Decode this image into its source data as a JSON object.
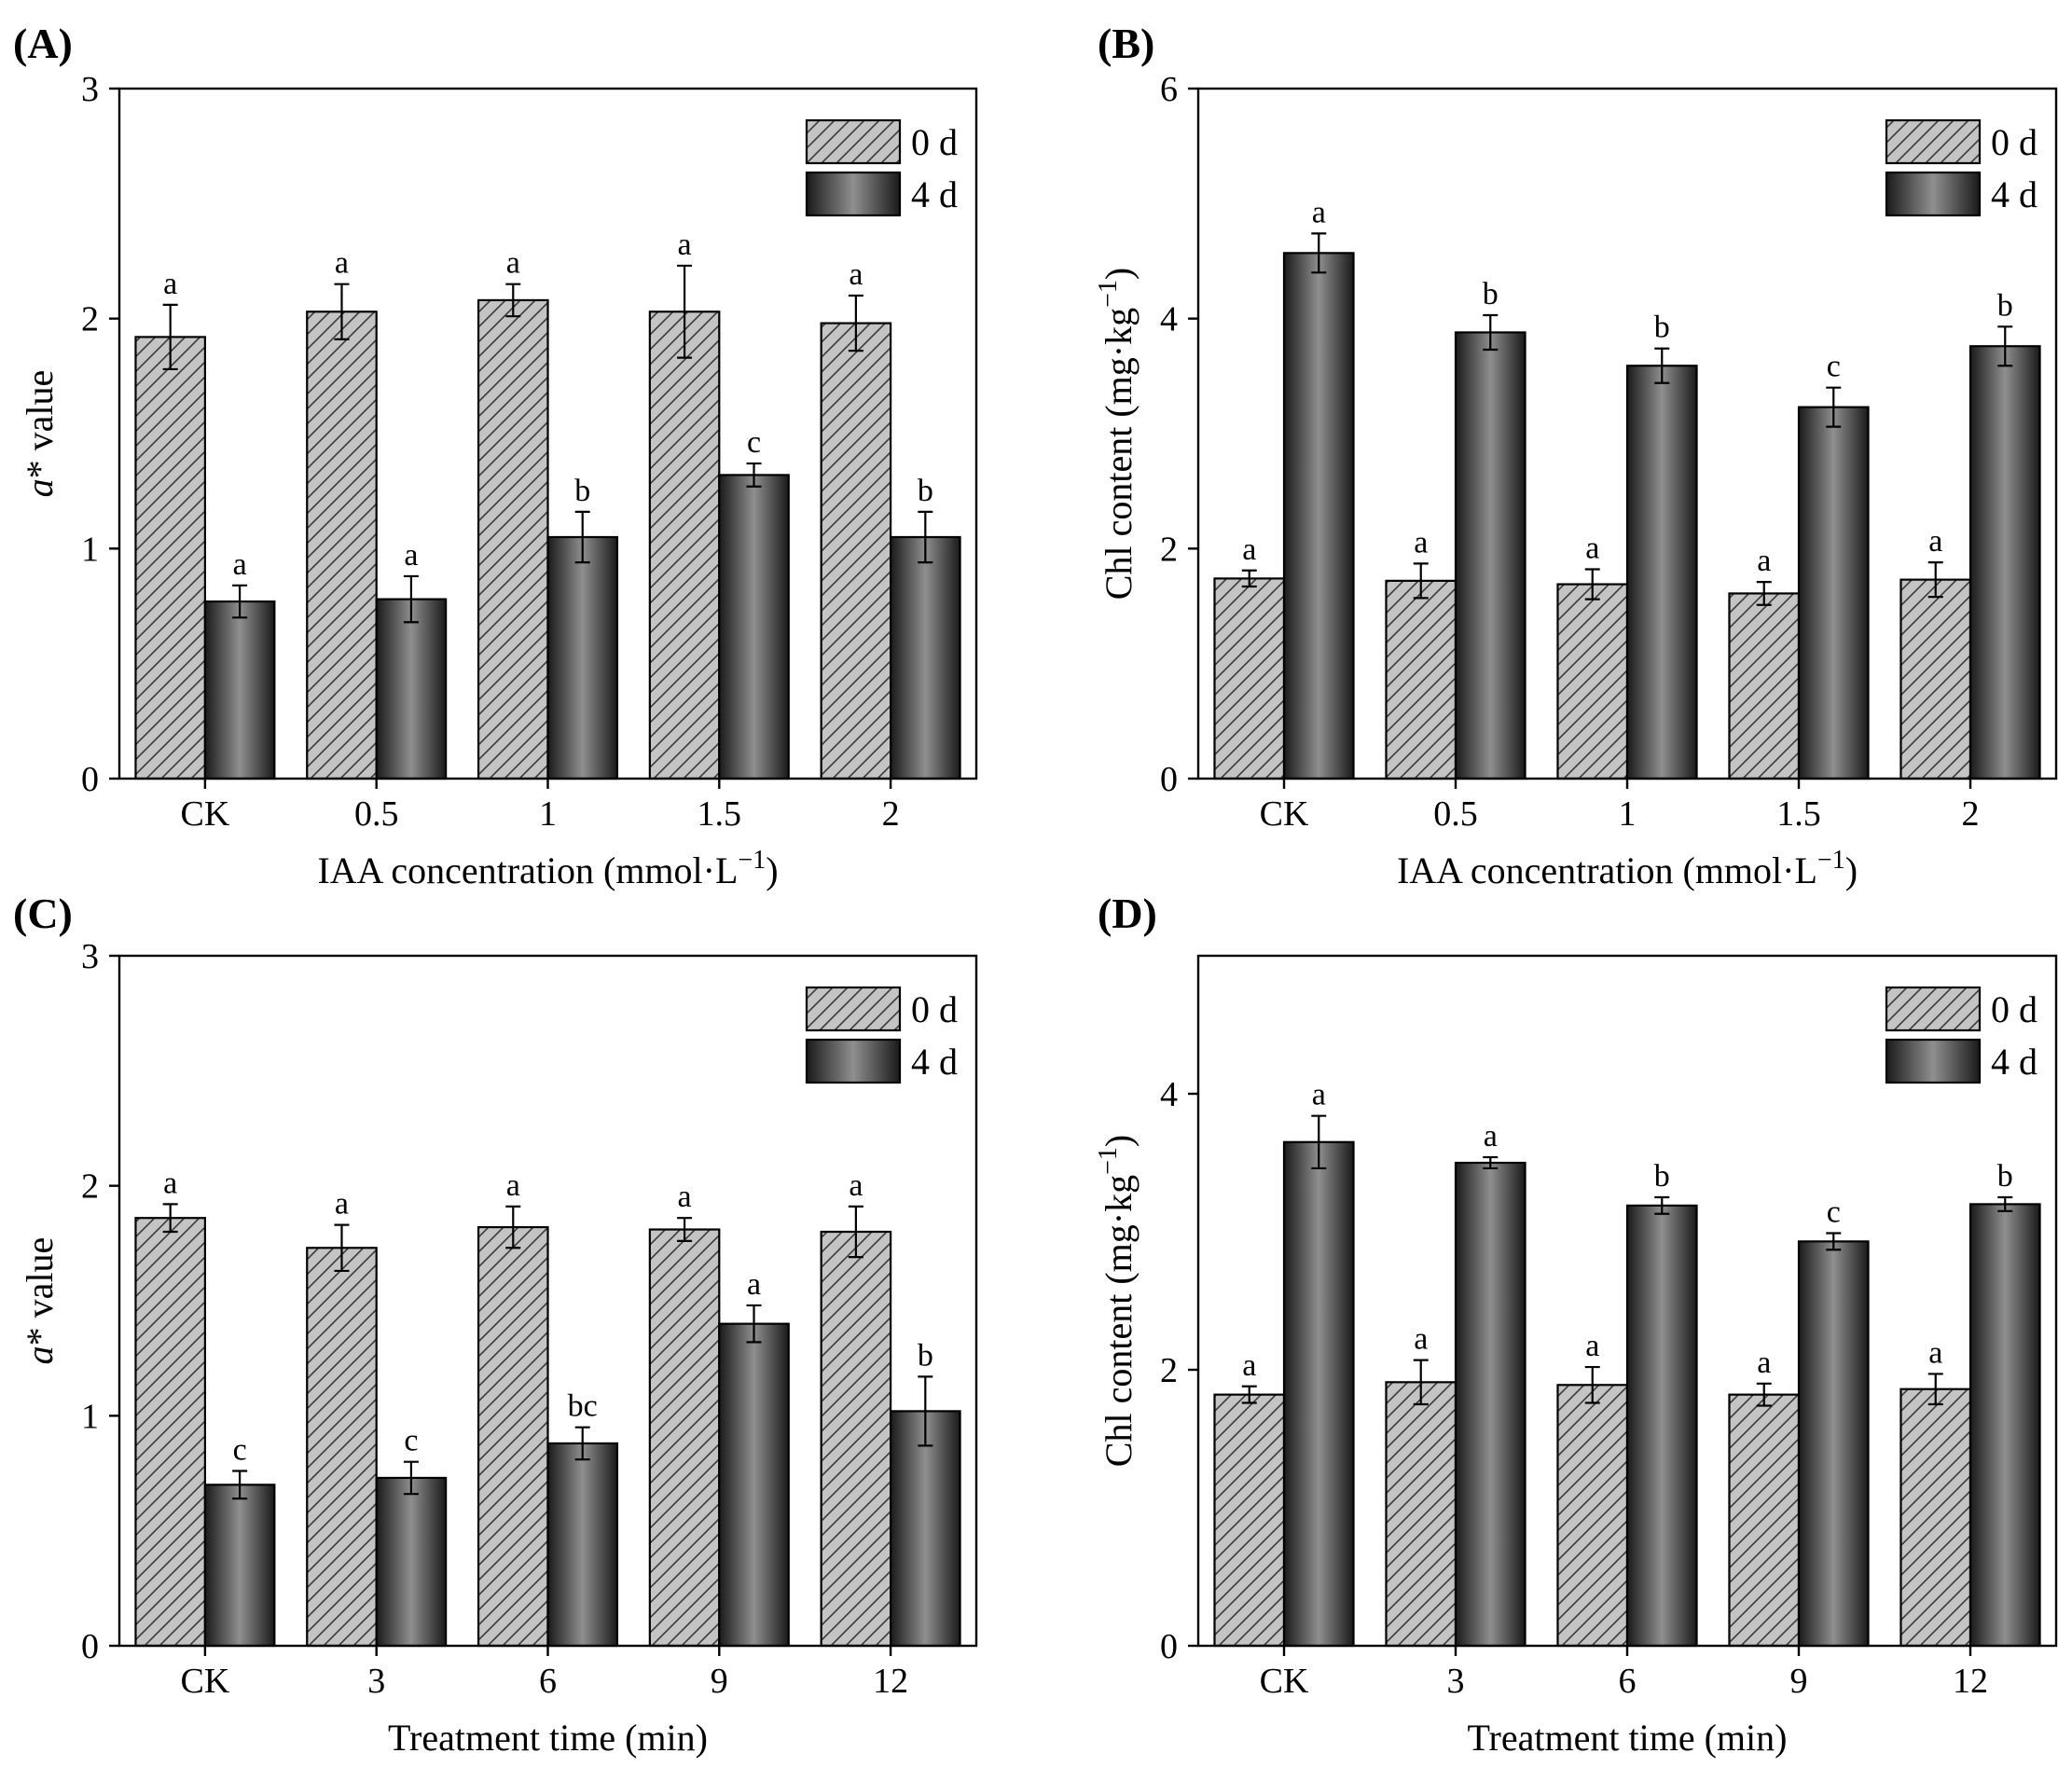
{
  "colors": {
    "bar_0d": "#c4c4c4",
    "bar_4d_edge": "#1a1a1a",
    "bar_4d_mid": "#8f8f8f"
  },
  "chart_data": [
    {
      "panel": "(A)",
      "type": "bar",
      "categories": [
        "CK",
        "0.5",
        "1",
        "1.5",
        "2"
      ],
      "xlabel": "IAA concentration (mmol·L",
      "xlabel_sup": "−1",
      "xlabel_end": ")",
      "ylabel_italic": "a",
      "ylabel": "* value",
      "ylabel_sup": "",
      "ylabel_end": "",
      "ylim": [
        0,
        3
      ],
      "yticks": [
        0,
        1,
        2,
        3
      ],
      "legend": [
        "0 d",
        "4 d"
      ],
      "legend_position": "top-right",
      "series": [
        {
          "name": "0 d",
          "values": [
            1.92,
            2.03,
            2.08,
            2.03,
            1.98
          ],
          "errors": [
            0.14,
            0.12,
            0.07,
            0.2,
            0.12
          ],
          "sig": [
            "a",
            "a",
            "a",
            "a",
            "a"
          ]
        },
        {
          "name": "4 d",
          "values": [
            0.77,
            0.78,
            1.05,
            1.32,
            1.05
          ],
          "errors": [
            0.07,
            0.1,
            0.11,
            0.05,
            0.11
          ],
          "sig": [
            "a",
            "a",
            "b",
            "c",
            "b"
          ]
        }
      ]
    },
    {
      "panel": "(B)",
      "type": "bar",
      "categories": [
        "CK",
        "0.5",
        "1",
        "1.5",
        "2"
      ],
      "xlabel": "IAA concentration (mmol·L",
      "xlabel_sup": "−1",
      "xlabel_end": ")",
      "ylabel_italic": "",
      "ylabel": "Chl content (mg·kg",
      "ylabel_sup": "−1",
      "ylabel_end": ")",
      "ylim": [
        0,
        6
      ],
      "yticks": [
        0,
        2,
        4,
        6
      ],
      "legend": [
        "0 d",
        "4 d"
      ],
      "legend_position": "top-right",
      "series": [
        {
          "name": "0 d",
          "values": [
            1.74,
            1.72,
            1.69,
            1.61,
            1.73
          ],
          "errors": [
            0.07,
            0.15,
            0.13,
            0.1,
            0.15
          ],
          "sig": [
            "a",
            "a",
            "a",
            "a",
            "a"
          ]
        },
        {
          "name": "4 d",
          "values": [
            4.57,
            3.88,
            3.59,
            3.23,
            3.76
          ],
          "errors": [
            0.17,
            0.15,
            0.15,
            0.17,
            0.17
          ],
          "sig": [
            "a",
            "b",
            "b",
            "c",
            "b"
          ]
        }
      ]
    },
    {
      "panel": "(C)",
      "type": "bar",
      "categories": [
        "CK",
        "3",
        "6",
        "9",
        "12"
      ],
      "xlabel": "Treatment time (min)",
      "xlabel_sup": "",
      "xlabel_end": "",
      "ylabel_italic": "a",
      "ylabel": "* value",
      "ylabel_sup": "",
      "ylabel_end": "",
      "ylim": [
        0,
        3
      ],
      "yticks": [
        0,
        1,
        2,
        3
      ],
      "legend": [
        "0 d",
        "4 d"
      ],
      "legend_position": "top-right",
      "series": [
        {
          "name": "0 d",
          "values": [
            1.86,
            1.73,
            1.82,
            1.81,
            1.8
          ],
          "errors": [
            0.06,
            0.1,
            0.09,
            0.05,
            0.11
          ],
          "sig": [
            "a",
            "a",
            "a",
            "a",
            "a"
          ]
        },
        {
          "name": "4 d",
          "values": [
            0.7,
            0.73,
            0.88,
            1.4,
            1.02
          ],
          "errors": [
            0.06,
            0.07,
            0.07,
            0.08,
            0.15
          ],
          "sig": [
            "c",
            "c",
            "bc",
            "a",
            "b"
          ]
        }
      ]
    },
    {
      "panel": "(D)",
      "type": "bar",
      "categories": [
        "CK",
        "3",
        "6",
        "9",
        "12"
      ],
      "xlabel": "Treatment time (min)",
      "xlabel_sup": "",
      "xlabel_end": "",
      "ylabel_italic": "",
      "ylabel": "Chl content (mg·kg",
      "ylabel_sup": "−1",
      "ylabel_end": ")",
      "ylim": [
        0,
        5
      ],
      "yticks": [
        0,
        2,
        4
      ],
      "legend": [
        "0 d",
        "4 d"
      ],
      "legend_position": "top-right",
      "series": [
        {
          "name": "0 d",
          "values": [
            1.82,
            1.91,
            1.89,
            1.82,
            1.86
          ],
          "errors": [
            0.06,
            0.16,
            0.13,
            0.08,
            0.11
          ],
          "sig": [
            "a",
            "a",
            "a",
            "a",
            "a"
          ]
        },
        {
          "name": "4 d",
          "values": [
            3.65,
            3.5,
            3.19,
            2.93,
            3.2
          ],
          "errors": [
            0.19,
            0.04,
            0.06,
            0.06,
            0.05
          ],
          "sig": [
            "a",
            "a",
            "b",
            "c",
            "b"
          ]
        }
      ]
    }
  ]
}
